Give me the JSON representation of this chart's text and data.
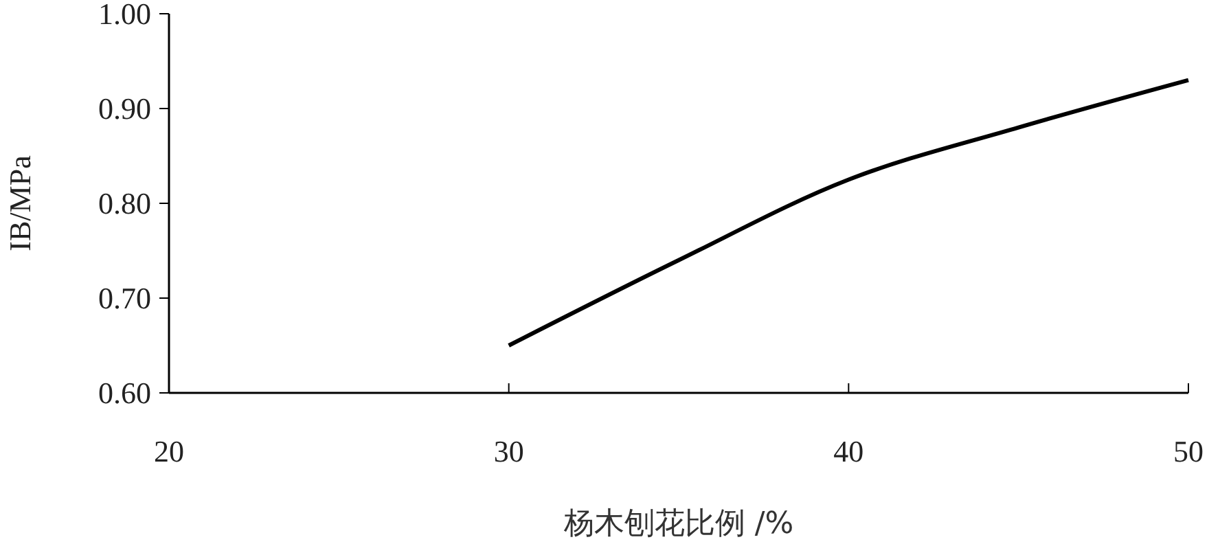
{
  "chart_data": {
    "type": "line",
    "xlabel": "杨木刨花比例 /%",
    "ylabel": "IB/MPa",
    "x": [
      30,
      35,
      40,
      45,
      50
    ],
    "series": [
      {
        "color": "#000000",
        "values": [
          0.65,
          0.74,
          0.825,
          0.88,
          0.93
        ]
      }
    ],
    "xlim": [
      20,
      50
    ],
    "xticks": [
      20,
      30,
      40,
      50
    ],
    "ylim": [
      0.6,
      1.0
    ],
    "yticks": [
      {
        "value": 0.6,
        "label": "0.60"
      },
      {
        "value": 0.7,
        "label": "0.70"
      },
      {
        "value": 0.8,
        "label": "0.80"
      },
      {
        "value": 0.9,
        "label": "0.90"
      },
      {
        "value": 1.0,
        "label": "1.00"
      }
    ],
    "marker": "none",
    "line_style": "solid"
  }
}
